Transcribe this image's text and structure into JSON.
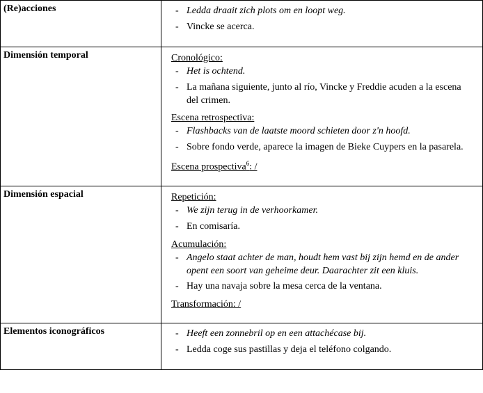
{
  "rows": [
    {
      "label": "(Re)acciones",
      "sections": [
        {
          "heading": null,
          "items": [
            {
              "text": "Ledda draait zich plots om en loopt weg.",
              "italic": true
            },
            {
              "text": "Vincke se acerca.",
              "italic": false
            }
          ]
        }
      ]
    },
    {
      "label": "Dimensión temporal",
      "sections": [
        {
          "heading": "Cronológico:",
          "items": [
            {
              "text": "Het is ochtend.",
              "italic": true
            },
            {
              "text": "La mañana siguiente, junto al río, Vincke y Freddie acuden a la escena del crimen.",
              "italic": false
            }
          ]
        },
        {
          "heading": "Escena retrospectiva:",
          "items": [
            {
              "text": "Flashbacks van de laatste moord schieten door z'n hoofd.",
              "italic": true
            },
            {
              "text": "Sobre fondo verde, aparece la imagen de Bieke Cuypers en la pasarela.",
              "italic": false
            }
          ]
        },
        {
          "heading_html": "Escena prospectiva<span class=\"sup\">6</span>: /",
          "items": []
        }
      ]
    },
    {
      "label": "Dimensión espacial",
      "sections": [
        {
          "heading": "Repetición:",
          "items": [
            {
              "text": "We zijn terug in de verhoorkamer.",
              "italic": true
            },
            {
              "text": "En comisaría.",
              "italic": false
            }
          ]
        },
        {
          "heading": "Acumulación:",
          "items": [
            {
              "text": "Angelo staat achter de man, houdt hem vast bij zijn hemd en de ander opent een soort van geheime deur. Daarachter zit een kluis.",
              "italic": true
            },
            {
              "text": "Hay una navaja sobre la mesa cerca de la ventana.",
              "italic": false
            }
          ]
        },
        {
          "heading": "Transformación: /",
          "items": []
        }
      ]
    },
    {
      "label": "Elementos iconográficos",
      "sections": [
        {
          "heading": null,
          "items": [
            {
              "text": "Heeft een zonnebril op en een attachécase bij.",
              "italic": true
            },
            {
              "text": "Ledda coge sus pastillas y deja el teléfono colgando.",
              "italic": false
            }
          ]
        }
      ]
    }
  ]
}
